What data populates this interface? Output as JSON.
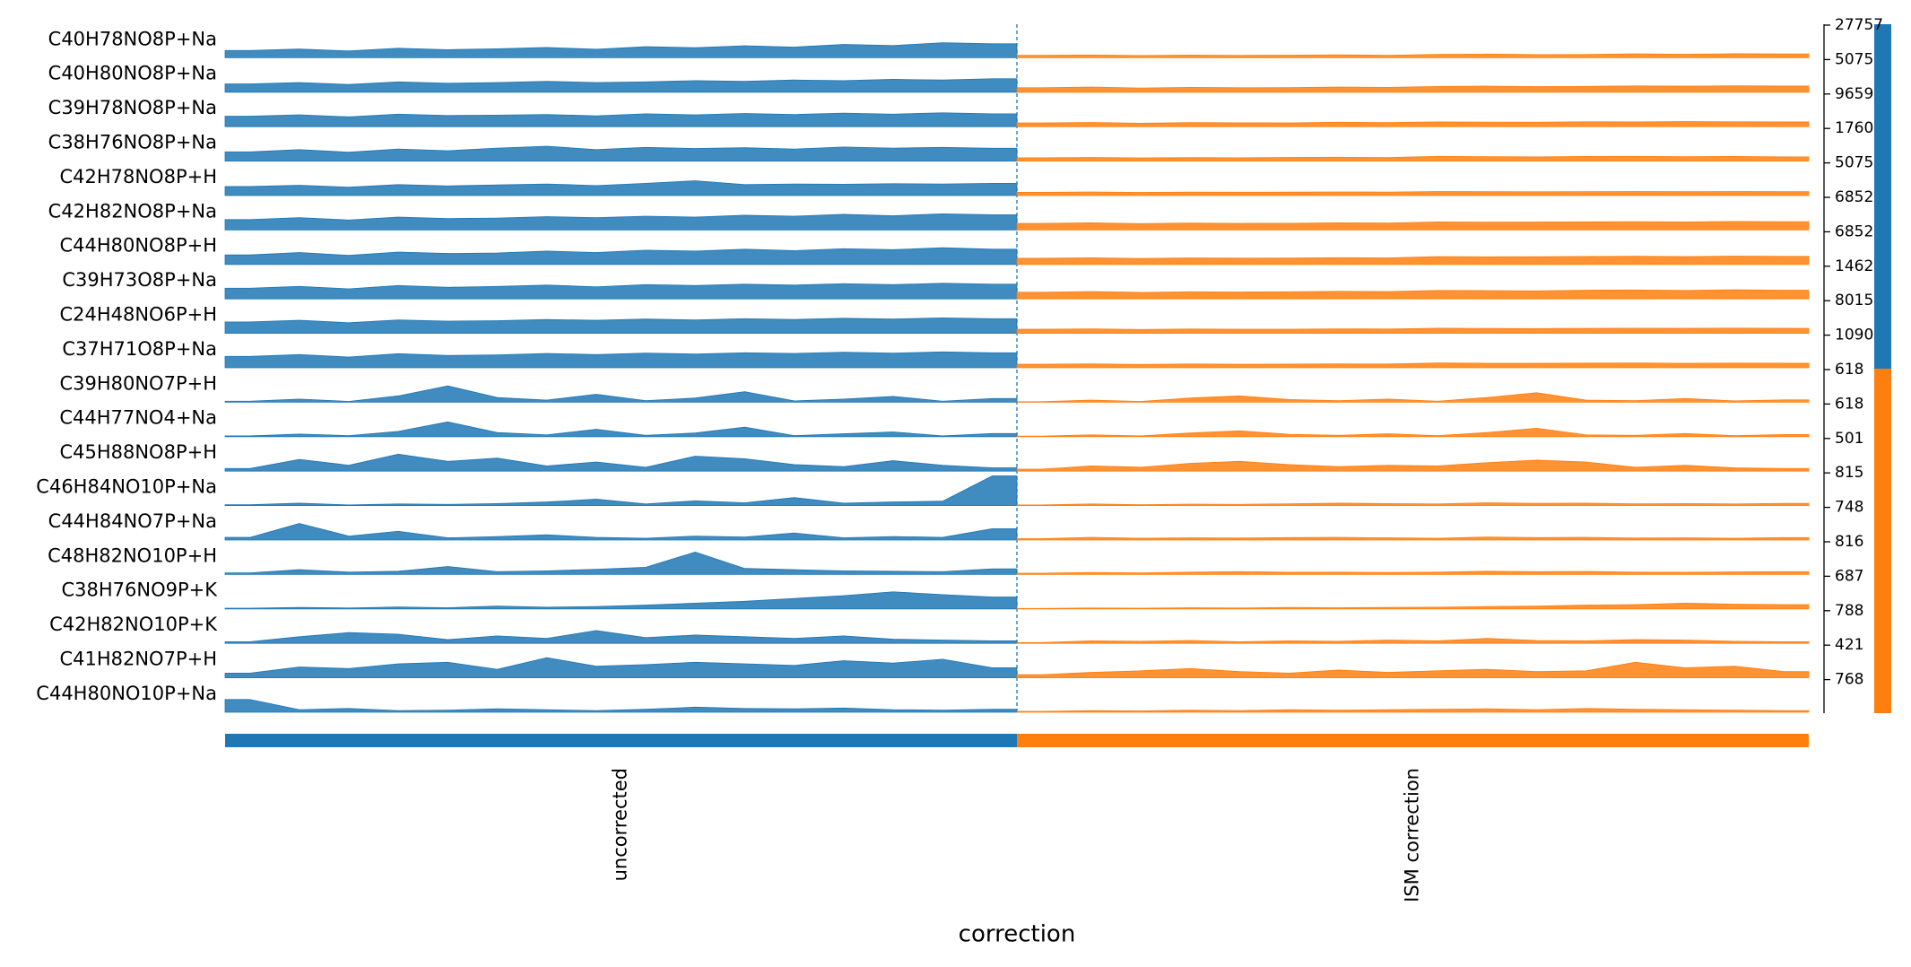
{
  "chart_data": {
    "type": "tracksplot",
    "x_label": "correction",
    "groups": [
      {
        "name": "uncorrected",
        "color": "#1f77b4"
      },
      {
        "name": "ISM correction",
        "color": "#ff7f0e"
      }
    ],
    "tracks": [
      {
        "name": "C40H78NO8P+Na",
        "ylim": [
          0,
          27757
        ],
        "yticks": [
          27757
        ],
        "values": [
          [
            6200,
            7400,
            5800,
            8100,
            6900,
            7600,
            8800,
            7200,
            9400,
            8600,
            10200,
            9100,
            11300,
            10400,
            12800,
            11900
          ],
          [
            2100,
            2400,
            1900,
            2300,
            2000,
            2200,
            2500,
            2100,
            2900,
            3100,
            2700,
            2800,
            3300,
            3000,
            3400,
            3200
          ]
        ]
      },
      {
        "name": "C40H80NO8P+Na",
        "ylim": [
          0,
          5075
        ],
        "yticks": [
          5075
        ],
        "values": [
          [
            1300,
            1500,
            1200,
            1600,
            1400,
            1500,
            1700,
            1500,
            1600,
            1800,
            1700,
            1900,
            1800,
            2000,
            1900,
            2100
          ],
          [
            700,
            800,
            650,
            750,
            700,
            720,
            800,
            760,
            900,
            950,
            880,
            910,
            980,
            940,
            1000,
            960
          ]
        ]
      },
      {
        "name": "C39H78NO8P+Na",
        "ylim": [
          0,
          9659
        ],
        "yticks": [
          9659
        ],
        "values": [
          [
            3100,
            3500,
            2900,
            3700,
            3300,
            3400,
            3600,
            3200,
            3800,
            3500,
            3900,
            3600,
            4000,
            3700,
            4100,
            3800
          ],
          [
            1100,
            1250,
            1000,
            1200,
            1150,
            1100,
            1300,
            1200,
            1400,
            1350,
            1300,
            1450,
            1400,
            1500,
            1450,
            1400
          ]
        ]
      },
      {
        "name": "C38H76NO8P+Na",
        "ylim": [
          0,
          1760
        ],
        "yticks": [
          1760
        ],
        "values": [
          [
            500,
            620,
            480,
            650,
            560,
            700,
            800,
            620,
            740,
            680,
            720,
            650,
            760,
            700,
            740,
            690
          ],
          [
            180,
            200,
            170,
            190,
            180,
            200,
            210,
            190,
            260,
            240,
            230,
            250,
            260,
            240,
            250,
            230
          ]
        ]
      },
      {
        "name": "C42H78NO8P+H",
        "ylim": [
          0,
          5075
        ],
        "yticks": [
          5075
        ],
        "values": [
          [
            1400,
            1600,
            1300,
            1700,
            1500,
            1650,
            1800,
            1550,
            1900,
            2300,
            1700,
            1800,
            1750,
            1850,
            1800,
            1900
          ],
          [
            500,
            560,
            480,
            540,
            520,
            530,
            560,
            540,
            620,
            600,
            590,
            610,
            630,
            600,
            620,
            600
          ]
        ]
      },
      {
        "name": "C42H82NO8P+Na",
        "ylim": [
          0,
          6852
        ],
        "yticks": [
          6852
        ],
        "values": [
          [
            2200,
            2600,
            2100,
            2700,
            2400,
            2500,
            2800,
            2600,
            2900,
            2700,
            3100,
            2900,
            3300,
            3000,
            3400,
            3200
          ],
          [
            1400,
            1500,
            1350,
            1450,
            1400,
            1420,
            1500,
            1460,
            1700,
            1650,
            1680,
            1720,
            1750,
            1700,
            1780,
            1740
          ]
        ]
      },
      {
        "name": "C44H80NO8P+H",
        "ylim": [
          0,
          6852
        ],
        "yticks": [
          6852
        ],
        "values": [
          [
            2000,
            2500,
            1900,
            2600,
            2300,
            2400,
            2800,
            2500,
            3000,
            2800,
            3200,
            2900,
            3300,
            3100,
            3500,
            3200
          ],
          [
            1300,
            1400,
            1250,
            1380,
            1320,
            1350,
            1420,
            1380,
            1650,
            1600,
            1620,
            1680,
            1720,
            1660,
            1750,
            1700
          ]
        ]
      },
      {
        "name": "C39H73O8P+Na",
        "ylim": [
          0,
          1462
        ],
        "yticks": [
          1462
        ],
        "values": [
          [
            480,
            560,
            450,
            600,
            520,
            560,
            620,
            540,
            640,
            600,
            660,
            620,
            680,
            640,
            700,
            660
          ],
          [
            300,
            330,
            290,
            320,
            310,
            320,
            340,
            330,
            380,
            370,
            360,
            390,
            400,
            380,
            410,
            390
          ]
        ]
      },
      {
        "name": "C24H48NO6P+H",
        "ylim": [
          0,
          8015
        ],
        "yticks": [
          8015
        ],
        "values": [
          [
            2800,
            3200,
            2600,
            3300,
            3000,
            3100,
            3400,
            3200,
            3500,
            3300,
            3600,
            3400,
            3700,
            3500,
            3800,
            3600
          ],
          [
            1000,
            1100,
            950,
            1050,
            1000,
            1020,
            1100,
            1060,
            1250,
            1200,
            1180,
            1220,
            1260,
            1230,
            1280,
            1240
          ]
        ]
      },
      {
        "name": "C37H71O8P+Na",
        "ylim": [
          0,
          1090
        ],
        "yticks": [
          1090
        ],
        "values": [
          [
            380,
            440,
            360,
            470,
            410,
            430,
            480,
            440,
            490,
            460,
            500,
            480,
            520,
            490,
            530,
            500
          ],
          [
            120,
            130,
            110,
            125,
            120,
            122,
            130,
            126,
            160,
            150,
            148,
            155,
            162,
            150,
            158,
            152
          ]
        ]
      },
      {
        "name": "C39H80NO7P+H",
        "ylim": [
          0,
          618
        ],
        "yticks": [
          618
        ],
        "values": [
          [
            20,
            60,
            15,
            120,
            310,
            90,
            40,
            150,
            30,
            80,
            200,
            25,
            60,
            110,
            20,
            70
          ],
          [
            10,
            40,
            15,
            80,
            120,
            50,
            30,
            60,
            20,
            90,
            180,
            40,
            30,
            70,
            25,
            45
          ]
        ]
      },
      {
        "name": "C44H77NO4+Na",
        "ylim": [
          0,
          618
        ],
        "yticks": [
          618
        ],
        "values": [
          [
            15,
            50,
            20,
            100,
            280,
            80,
            35,
            140,
            25,
            70,
            180,
            20,
            55,
            90,
            15,
            60
          ],
          [
            10,
            35,
            15,
            70,
            110,
            45,
            25,
            55,
            20,
            80,
            160,
            35,
            25,
            60,
            20,
            40
          ]
        ]
      },
      {
        "name": "C45H88NO8P+H",
        "ylim": [
          0,
          501
        ],
        "yticks": [
          501
        ],
        "values": [
          [
            40,
            180,
            90,
            260,
            150,
            200,
            80,
            140,
            60,
            230,
            190,
            100,
            70,
            160,
            90,
            50
          ],
          [
            30,
            80,
            60,
            120,
            150,
            100,
            70,
            90,
            80,
            130,
            170,
            140,
            60,
            90,
            50,
            40
          ]
        ]
      },
      {
        "name": "C46H84NO10P+Na",
        "ylim": [
          0,
          815
        ],
        "yticks": [
          815
        ],
        "values": [
          [
            20,
            60,
            15,
            40,
            30,
            50,
            90,
            160,
            40,
            120,
            70,
            200,
            60,
            90,
            110,
            740
          ],
          [
            15,
            40,
            20,
            35,
            30,
            45,
            60,
            50,
            40,
            70,
            55,
            60,
            45,
            50,
            40,
            55
          ]
        ]
      },
      {
        "name": "C44H84NO7P+Na",
        "ylim": [
          0,
          748
        ],
        "yticks": [
          748
        ],
        "values": [
          [
            60,
            380,
            90,
            200,
            50,
            80,
            120,
            60,
            40,
            90,
            70,
            160,
            50,
            80,
            60,
            260
          ],
          [
            30,
            60,
            40,
            50,
            45,
            55,
            60,
            50,
            40,
            70,
            55,
            60,
            45,
            50,
            40,
            55
          ]
        ]
      },
      {
        "name": "C48H82NO10P+H",
        "ylim": [
          0,
          816
        ],
        "yticks": [
          816
        ],
        "values": [
          [
            40,
            120,
            60,
            80,
            200,
            70,
            90,
            130,
            180,
            560,
            150,
            120,
            90,
            80,
            70,
            140
          ],
          [
            30,
            50,
            40,
            60,
            70,
            55,
            60,
            50,
            60,
            80,
            70,
            75,
            60,
            55,
            65,
            70
          ]
        ]
      },
      {
        "name": "C38H76NO9P+K",
        "ylim": [
          0,
          687
        ],
        "yticks": [
          687
        ],
        "values": [
          [
            15,
            30,
            20,
            40,
            25,
            60,
            35,
            50,
            80,
            120,
            160,
            220,
            280,
            360,
            300,
            250
          ],
          [
            10,
            20,
            15,
            25,
            20,
            30,
            25,
            30,
            35,
            50,
            60,
            80,
            90,
            120,
            100,
            90
          ]
        ]
      },
      {
        "name": "C42H82NO10P+K",
        "ylim": [
          0,
          788
        ],
        "yticks": [
          788
        ],
        "values": [
          [
            40,
            160,
            260,
            220,
            90,
            180,
            120,
            310,
            140,
            200,
            160,
            120,
            180,
            100,
            80,
            60
          ],
          [
            20,
            60,
            50,
            70,
            40,
            60,
            50,
            80,
            60,
            120,
            70,
            60,
            90,
            80,
            50,
            40
          ]
        ]
      },
      {
        "name": "C41H82NO7P+H",
        "ylim": [
          0,
          421
        ],
        "yticks": [
          421
        ],
        "values": [
          [
            60,
            140,
            120,
            180,
            200,
            110,
            260,
            150,
            170,
            200,
            180,
            160,
            220,
            190,
            240,
            130
          ],
          [
            40,
            70,
            90,
            120,
            80,
            60,
            100,
            70,
            90,
            110,
            80,
            90,
            200,
            130,
            150,
            80
          ]
        ]
      },
      {
        "name": "C44H80NO10P+Na",
        "ylim": [
          0,
          768
        ],
        "yticks": [
          768
        ],
        "values": [
          [
            300,
            60,
            90,
            40,
            50,
            80,
            60,
            40,
            70,
            120,
            90,
            80,
            100,
            60,
            50,
            70
          ],
          [
            20,
            40,
            30,
            50,
            40,
            60,
            50,
            60,
            70,
            80,
            60,
            90,
            70,
            60,
            50,
            40
          ]
        ]
      }
    ]
  }
}
